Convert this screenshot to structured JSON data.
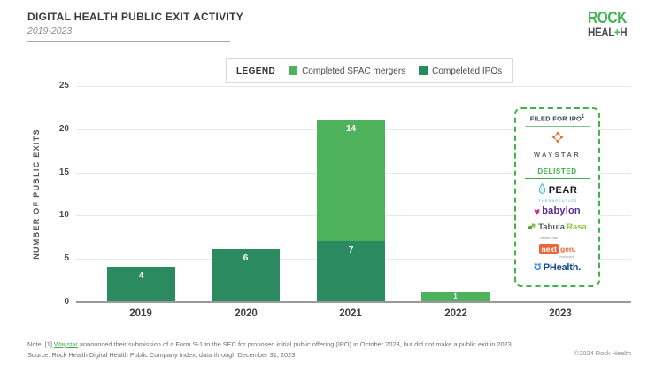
{
  "header": {
    "title": "DIGITAL HEALTH PUBLIC EXIT ACTIVITY",
    "subtitle": "2019-2023",
    "brand": {
      "line1": "ROCK",
      "line2_pre": "HEAL",
      "line2_plus": "+",
      "line2_post": "H"
    }
  },
  "legend": {
    "label": "LEGEND",
    "items": [
      {
        "label": "Completed SPAC mergers",
        "color": "#4eb15c"
      },
      {
        "label": "Compeleted IPOs",
        "color": "#2b8a60"
      }
    ]
  },
  "chart_data": {
    "type": "bar",
    "stacked": true,
    "title": "Digital Health Public Exit Activity 2019-2023",
    "categories": [
      "2019",
      "2020",
      "2021",
      "2022",
      "2023"
    ],
    "series": [
      {
        "name": "Compeleted IPOs",
        "color": "#2b8a60",
        "values": [
          4,
          6,
          7,
          0,
          0
        ]
      },
      {
        "name": "Completed SPAC mergers",
        "color": "#4eb15c",
        "values": [
          0,
          0,
          14,
          1,
          0
        ]
      }
    ],
    "totals": [
      4,
      6,
      21,
      1,
      0
    ],
    "xlabel": "",
    "ylabel": "NUMBER OF PUBLIC EXITS",
    "ylim": [
      0,
      25
    ],
    "yticks": [
      0,
      5,
      10,
      15,
      20,
      25
    ],
    "grid": true,
    "legend_position": "top",
    "bar_labels": true
  },
  "panel": {
    "filed_title": "FILED FOR IPO",
    "filed_note_ref": "1",
    "waystar_wordmark": "WAYSTAR",
    "delisted_title": "DELISTED",
    "logos": {
      "pear": {
        "text": "PEAR",
        "sub": "THERAPEUTICS",
        "name": "Pear Therapeutics"
      },
      "babylon": {
        "heart": "♥",
        "text": "babylon",
        "name": "Babylon"
      },
      "tabula": {
        "text1": "Tabula",
        "text2": "Rasa",
        "sub": "HealthCare",
        "name": "Tabula Rasa HealthCare"
      },
      "nextgen": {
        "text1": "next",
        "text2": "gen.",
        "sub": "healthcare",
        "name": "NextGen Healthcare"
      },
      "uphealth": {
        "icon_glyph": "Ʊ",
        "text": "PHealth.",
        "name": "UpHealth"
      }
    }
  },
  "footer": {
    "note_prefix": "Note: [1] ",
    "note_link": "Waystar",
    "note_rest": " announced their submission of a Form S-1 to the SEC for proposed initial public offering (IPO) in October 2023, but did not make a public exit in 2023",
    "source": "Source: Rock Health Digital Health Public Company Index; data through December 31, 2023",
    "copyright": "©2024 Rock Health"
  },
  "colors": {
    "spac_green": "#4eb15c",
    "ipo_green": "#2b8a60",
    "brand_green": "#45b354",
    "panel_border_green": "#3db54a",
    "link_green": "#3dae49",
    "waystar_orange": "#f26522",
    "nextgen_orange": "#e8683a",
    "babylon_purple": "#5b2c8f",
    "babylon_heart_pink": "#c0399b",
    "pear_teal": "#2bb3c0",
    "tabula_green": "#8dc63f",
    "uphealth_blue": "#174a8c"
  }
}
